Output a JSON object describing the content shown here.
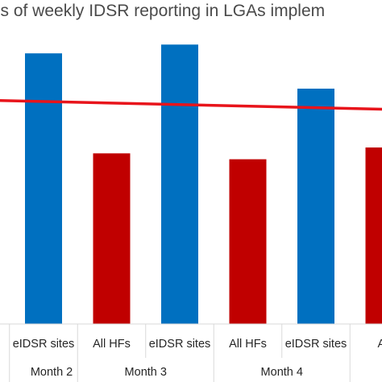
{
  "chart_data": {
    "type": "bar",
    "title": "ss  of weekly IDSR reporting in LGAs implem",
    "xlabel": "",
    "ylabel": "",
    "ylim": [
      0,
      100
    ],
    "grid": false,
    "groups": [
      {
        "label": "Month 2",
        "categories": [
          "eIDSR sites"
        ]
      },
      {
        "label": "Month 3",
        "categories": [
          "All HFs",
          "eIDSR sites"
        ]
      },
      {
        "label": "Month 4",
        "categories": [
          "All HFs",
          "eIDSR sites"
        ]
      },
      {
        "label": "",
        "categories": [
          "All"
        ]
      }
    ],
    "bars": [
      {
        "group": "Month 2",
        "category": "eIDSR sites",
        "value": 92,
        "color": "#0070c0"
      },
      {
        "group": "Month 3",
        "category": "All HFs",
        "value": 58,
        "color": "#c00000"
      },
      {
        "group": "Month 3",
        "category": "eIDSR sites",
        "value": 95,
        "color": "#0070c0"
      },
      {
        "group": "Month 4",
        "category": "All HFs",
        "value": 56,
        "color": "#c00000"
      },
      {
        "group": "Month 4",
        "category": "eIDSR sites",
        "value": 80,
        "color": "#0070c0"
      },
      {
        "group": "",
        "category": "All",
        "value": 60,
        "color": "#c00000"
      }
    ],
    "reference_line": {
      "start_value": 76,
      "end_value": 73,
      "color": "#e8141b"
    }
  }
}
